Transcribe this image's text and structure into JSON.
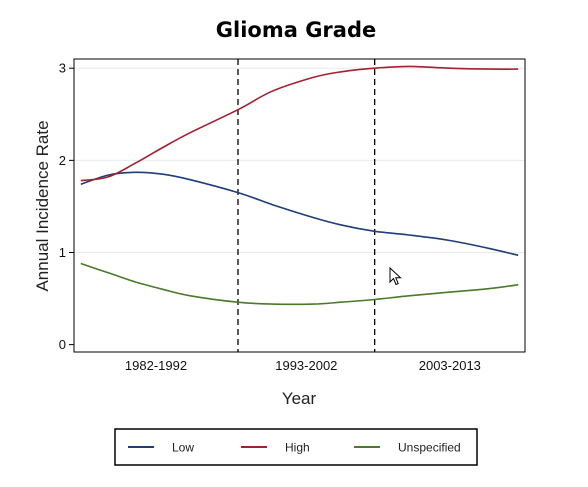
{
  "chart_data": {
    "type": "line",
    "title": "Glioma Grade",
    "xlabel": "Year",
    "ylabel": "Annual Incidence Rate",
    "x_tick_labels": [
      "1982-1992",
      "1993-2002",
      "2003-2013"
    ],
    "y_ticks": [
      0,
      1,
      2,
      3
    ],
    "ylim": [
      -0.08,
      3.1
    ],
    "xlim": [
      1980.5,
      2013.5
    ],
    "grid": "horizontal light",
    "period_dividers": [
      1992.5,
      2002.5
    ],
    "legend_position": "bottom",
    "series": [
      {
        "name": "Low",
        "color": "#1f3d7a",
        "x": [
          1981,
          1983,
          1985,
          1987,
          1989,
          1992.5,
          1995,
          1998,
          2000,
          2002.5,
          2005,
          2008,
          2011,
          2013
        ],
        "y": [
          1.74,
          1.84,
          1.87,
          1.85,
          1.79,
          1.65,
          1.52,
          1.38,
          1.3,
          1.23,
          1.19,
          1.13,
          1.04,
          0.97
        ]
      },
      {
        "name": "High",
        "color": "#a3202f",
        "x": [
          1981,
          1983,
          1985,
          1987,
          1989,
          1992.5,
          1995,
          1998,
          2000,
          2002.5,
          2005,
          2008,
          2011,
          2013
        ],
        "y": [
          1.78,
          1.82,
          1.97,
          2.14,
          2.3,
          2.55,
          2.75,
          2.9,
          2.96,
          3.0,
          3.02,
          3.0,
          2.99,
          2.99
        ]
      },
      {
        "name": "Unspecified",
        "color": "#4a7a2a",
        "x": [
          1981,
          1983,
          1985,
          1987,
          1989,
          1992.5,
          1995,
          1998,
          2000,
          2002.5,
          2005,
          2008,
          2011,
          2013
        ],
        "y": [
          0.88,
          0.78,
          0.68,
          0.6,
          0.53,
          0.46,
          0.44,
          0.44,
          0.46,
          0.49,
          0.53,
          0.57,
          0.61,
          0.65
        ]
      }
    ]
  }
}
